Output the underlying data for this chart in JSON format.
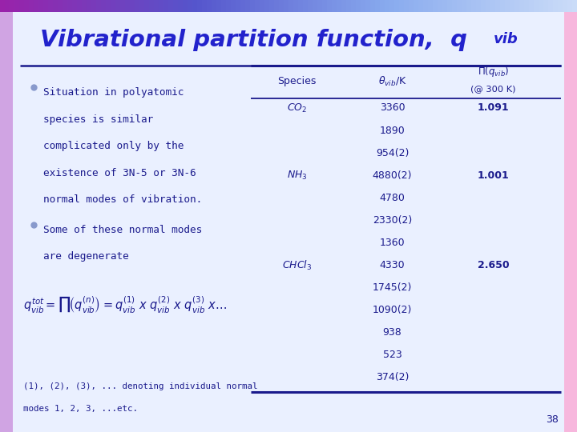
{
  "slide_bg": "#EAF0FF",
  "title_color": "#2222CC",
  "text_color": "#1a1a8c",
  "line_color": "#1a1a8c",
  "bullet_color": "#8899CC",
  "bullet1_lines": [
    "Situation in polyatomic",
    "species is similar",
    "complicated only by the",
    "existence of 3N-5 or 3N-6",
    "normal modes of vibration."
  ],
  "bullet2_lines": [
    "Some of these normal modes",
    "are degenerate"
  ],
  "footnote_lines": [
    "(1), (2), (3), ... denoting individual normal",
    "modes 1, 2, 3, ...etc."
  ],
  "table_rows": [
    [
      "CO2",
      "3360",
      "1.091"
    ],
    [
      "",
      "1890",
      ""
    ],
    [
      "",
      "954(2)",
      ""
    ],
    [
      "NH3",
      "4880(2)",
      "1.001"
    ],
    [
      "",
      "4780",
      ""
    ],
    [
      "",
      "2330(2)",
      ""
    ],
    [
      "",
      "1360",
      ""
    ],
    [
      "CHCl3",
      "4330",
      "2.650"
    ],
    [
      "",
      "1745(2)",
      ""
    ],
    [
      "",
      "1090(2)",
      ""
    ],
    [
      "",
      "938",
      ""
    ],
    [
      "",
      "523",
      ""
    ],
    [
      "",
      "374(2)",
      ""
    ]
  ],
  "page_num": "38",
  "top_bar_colors": [
    "#AA33AA",
    "#6655CC",
    "#88AAEE",
    "#CCDDF8"
  ],
  "left_bar_color": "#BB66CC",
  "right_bar_color": "#FF99CC"
}
